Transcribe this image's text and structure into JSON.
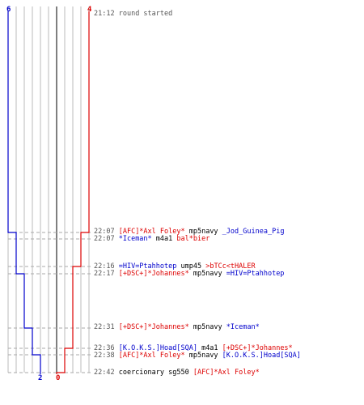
{
  "round": {
    "start_time": "21:12",
    "start_text": "round started"
  },
  "colors": {
    "blue": "#0000cc",
    "red": "#dd0000",
    "grid": "#bbbbbb",
    "center": "#555555",
    "dash": "#aaaaaa"
  },
  "scores": {
    "blue_start": "6",
    "red_start": "4",
    "blue_end": "2",
    "red_end": "0"
  },
  "events": [
    {
      "time": "22:07",
      "killer": "[AFC]*Axl Foley*",
      "killer_team": "red",
      "weapon": "mp5navy",
      "victim": "_Jod_Guinea_Pig",
      "victim_team": "blue"
    },
    {
      "time": "22:07",
      "killer": "*Iceman*",
      "killer_team": "blue",
      "weapon": "m4a1",
      "victim": "bal*bier",
      "victim_team": "red"
    },
    {
      "time": "22:16",
      "killer": "=HIV=Ptahhotep",
      "killer_team": "blue",
      "weapon": "ump45",
      "victim": ">bTCc<tHALER",
      "victim_team": "red"
    },
    {
      "time": "22:17",
      "killer": "[+DSC+]*Johannes*",
      "killer_team": "red",
      "weapon": "mp5navy",
      "victim": "=HIV=Ptahhotep",
      "victim_team": "blue"
    },
    {
      "time": "22:31",
      "killer": "[+DSC+]*Johannes*",
      "killer_team": "red",
      "weapon": "mp5navy",
      "victim": "*Iceman*",
      "victim_team": "blue"
    },
    {
      "time": "22:36",
      "killer": "[K.O.K.S.]Hoad[SQA]",
      "killer_team": "blue",
      "weapon": "m4a1",
      "victim": "[+DSC+]*Johannes*",
      "victim_team": "red"
    },
    {
      "time": "22:38",
      "killer": "[AFC]*Axl Foley*",
      "killer_team": "red",
      "weapon": "mp5navy",
      "victim": "[K.O.K.S.]Hoad[SQA]",
      "victim_team": "blue"
    },
    {
      "time": "22:42",
      "killer": "coercionary",
      "killer_team": "black",
      "weapon": "sg550",
      "victim": "[AFC]*Axl Foley*",
      "victim_team": "red"
    }
  ]
}
